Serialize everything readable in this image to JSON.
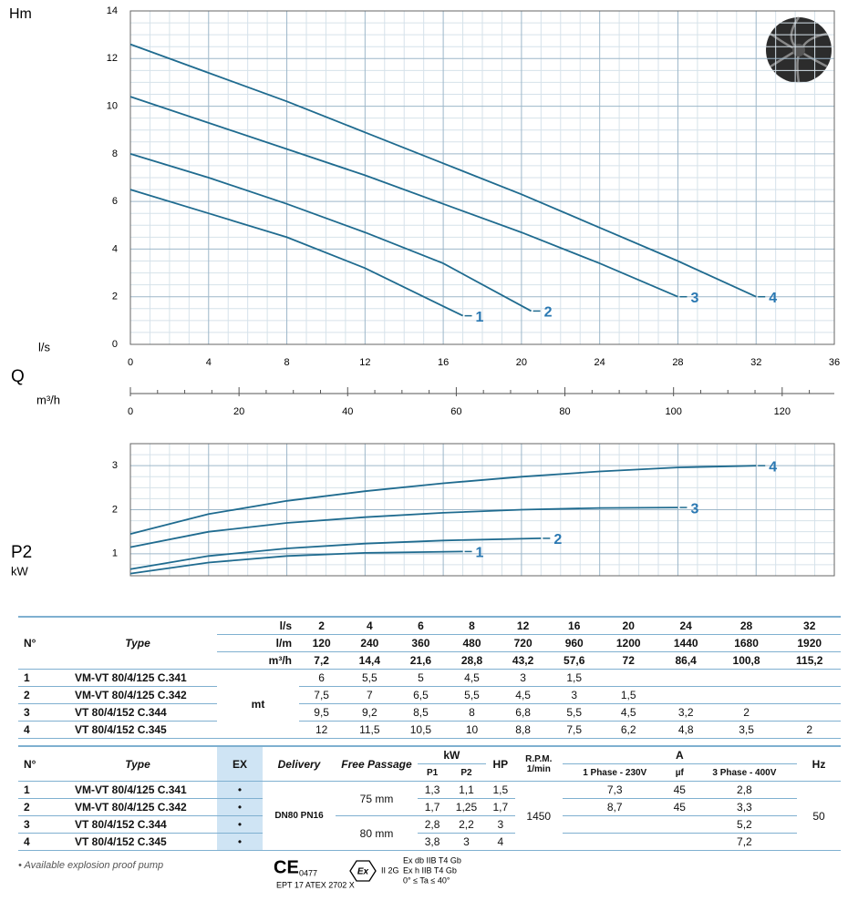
{
  "chart_data": [
    {
      "type": "line",
      "ylabel": "Hm",
      "xlabel_top": "l/s",
      "xlabel": "Q",
      "x2label": "m³/h",
      "xlim": [
        0,
        36
      ],
      "xticks": [
        0,
        4,
        8,
        12,
        16,
        20,
        24,
        28,
        32,
        36
      ],
      "ylim": [
        0,
        14
      ],
      "yticks": [
        0,
        2,
        4,
        6,
        8,
        10,
        12,
        14
      ],
      "x2lim": [
        0,
        129.6
      ],
      "x2ticks": [
        0,
        20,
        40,
        60,
        80,
        100,
        120
      ],
      "grid": true,
      "label_color": "#2a78b2",
      "series": [
        {
          "name": "1",
          "color": "#1f6b8f",
          "x": [
            0,
            4,
            8,
            12,
            16,
            17
          ],
          "values": [
            6.5,
            5.5,
            4.5,
            3.2,
            1.6,
            1.2
          ]
        },
        {
          "name": "2",
          "color": "#1f6b8f",
          "x": [
            0,
            4,
            8,
            12,
            16,
            20.5
          ],
          "values": [
            8,
            7,
            5.9,
            4.7,
            3.4,
            1.4
          ]
        },
        {
          "name": "3",
          "color": "#1f6b8f",
          "x": [
            0,
            4,
            8,
            12,
            16,
            20,
            24,
            28
          ],
          "values": [
            10.4,
            9.3,
            8.2,
            7.1,
            5.9,
            4.7,
            3.4,
            2
          ]
        },
        {
          "name": "4",
          "color": "#1f6b8f",
          "x": [
            0,
            4,
            8,
            12,
            16,
            20,
            24,
            28,
            32
          ],
          "values": [
            12.6,
            11.4,
            10.2,
            8.9,
            7.6,
            6.3,
            4.9,
            3.5,
            2
          ]
        }
      ]
    },
    {
      "type": "line",
      "ylabel": "P2",
      "yunit": "kW",
      "xlim": [
        0,
        36
      ],
      "xticks": [
        0,
        4,
        8,
        12,
        16,
        20,
        24,
        28,
        32,
        36
      ],
      "ylim": [
        0.5,
        3.5
      ],
      "yticks": [
        1,
        2,
        3
      ],
      "grid": true,
      "label_color": "#2a78b2",
      "series": [
        {
          "name": "1",
          "color": "#1f6b8f",
          "x": [
            0,
            4,
            8,
            12,
            17
          ],
          "values": [
            0.55,
            0.8,
            0.95,
            1.02,
            1.05
          ]
        },
        {
          "name": "2",
          "color": "#1f6b8f",
          "x": [
            0,
            4,
            8,
            12,
            16,
            21
          ],
          "values": [
            0.65,
            0.95,
            1.12,
            1.23,
            1.3,
            1.35
          ]
        },
        {
          "name": "3",
          "color": "#1f6b8f",
          "x": [
            0,
            4,
            8,
            12,
            16,
            20,
            24,
            28
          ],
          "values": [
            1.15,
            1.5,
            1.7,
            1.83,
            1.93,
            2,
            2.04,
            2.05
          ]
        },
        {
          "name": "4",
          "color": "#1f6b8f",
          "x": [
            0,
            4,
            8,
            12,
            16,
            20,
            24,
            28,
            32
          ],
          "values": [
            1.45,
            1.9,
            2.2,
            2.42,
            2.6,
            2.75,
            2.87,
            2.96,
            3
          ]
        }
      ]
    }
  ],
  "table1": {
    "headers": {
      "no": "N°",
      "type": "Type",
      "flow_units": [
        "l/s",
        "l/m",
        "m³/h"
      ],
      "flow_values": [
        [
          "2",
          "4",
          "6",
          "8",
          "12",
          "16",
          "20",
          "24",
          "28",
          "32"
        ],
        [
          "120",
          "240",
          "360",
          "480",
          "720",
          "960",
          "1200",
          "1440",
          "1680",
          "1920"
        ],
        [
          "7,2",
          "14,4",
          "21,6",
          "28,8",
          "43,2",
          "57,6",
          "72",
          "86,4",
          "100,8",
          "115,2"
        ]
      ]
    },
    "unit": "mt",
    "rows": [
      {
        "no": "1",
        "type": "VM-VT 80/4/125 C.341",
        "values": [
          "6",
          "5,5",
          "5",
          "4,5",
          "3",
          "1,5"
        ]
      },
      {
        "no": "2",
        "type": "VM-VT 80/4/125 C.342",
        "values": [
          "7,5",
          "7",
          "6,5",
          "5,5",
          "4,5",
          "3",
          "1,5"
        ]
      },
      {
        "no": "3",
        "type": "VT 80/4/152 C.344",
        "values": [
          "9,5",
          "9,2",
          "8,5",
          "8",
          "6,8",
          "5,5",
          "4,5",
          "3,2",
          "2"
        ]
      },
      {
        "no": "4",
        "type": "VT 80/4/152 C.345",
        "values": [
          "12",
          "11,5",
          "10,5",
          "10",
          "8,8",
          "7,5",
          "6,2",
          "4,8",
          "3,5",
          "2"
        ]
      }
    ]
  },
  "table2": {
    "headers": {
      "no": "N°",
      "type": "Type",
      "ex": "EX",
      "delivery": "Delivery",
      "free_passage": "Free Passage",
      "kw": "kW",
      "p1": "P1",
      "p2": "P2",
      "hp": "HP",
      "rpm": "R.P.M.",
      "rpm_unit": "1/min",
      "a": "A",
      "phase1": "1 Phase - 230V",
      "uf": "µf",
      "phase3": "3 Phase - 400V",
      "hz": "Hz"
    },
    "delivery": "DN80 PN16",
    "free_passage": [
      "75 mm",
      "80 mm"
    ],
    "rpm": "1450",
    "hz": "50",
    "rows": [
      {
        "no": "1",
        "type": "VM-VT 80/4/125 C.341",
        "ex": "•",
        "p1": "1,3",
        "p2": "1,1",
        "hp": "1,5",
        "a1": "7,3",
        "uf": "45",
        "a3": "2,8"
      },
      {
        "no": "2",
        "type": "VM-VT 80/4/125 C.342",
        "ex": "•",
        "p1": "1,7",
        "p2": "1,25",
        "hp": "1,7",
        "a1": "8,7",
        "uf": "45",
        "a3": "3,3"
      },
      {
        "no": "3",
        "type": "VT 80/4/152 C.344",
        "ex": "•",
        "p1": "2,8",
        "p2": "2,2",
        "hp": "3",
        "a3": "5,2"
      },
      {
        "no": "4",
        "type": "VT 80/4/152 C.345",
        "ex": "•",
        "p1": "3,8",
        "p2": "3",
        "hp": "4",
        "a3": "7,2"
      }
    ]
  },
  "footer": {
    "note": "• Available explosion proof pump",
    "ce": "CE",
    "ce_number": "0477",
    "atex": "EPT 17 ATEX 2702 X",
    "ex": "Ex",
    "group": "II 2G",
    "marks": [
      "Ex db IIB T4 Gb",
      "Ex h IIB T4 Gb",
      "0° ≤ Ta ≤ 40°"
    ]
  }
}
